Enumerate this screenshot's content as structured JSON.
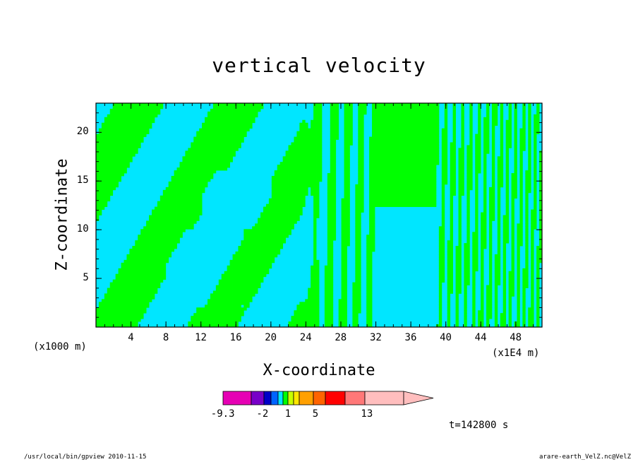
{
  "chart_data": {
    "type": "heatmap",
    "title": "vertical velocity",
    "xlabel": "X-coordinate",
    "ylabel": "Z-coordinate",
    "x_unit_left": "(x1000 m)",
    "x_unit_right": "(x1E4 m)",
    "x_ticks": [
      "4",
      "8",
      "12",
      "16",
      "20",
      "24",
      "28",
      "32",
      "36",
      "40",
      "44",
      "48"
    ],
    "y_ticks": [
      "5",
      "10",
      "15",
      "20"
    ],
    "xlim": [
      0,
      51
    ],
    "ylim": [
      0,
      23
    ],
    "colors": {
      "positive": "#00ff00",
      "negative": "#00e6ff",
      "contour": "#000000"
    },
    "colorbar": {
      "colors": [
        "#e600b4",
        "#7800c8",
        "#0000c8",
        "#0064ff",
        "#00e6ff",
        "#00ff00",
        "#c8ff00",
        "#ffe600",
        "#ffa000",
        "#ff6400",
        "#ff0000",
        "#ff7878",
        "#ffbebe"
      ],
      "tick_labels": [
        "-9.3",
        "-2",
        "1",
        "5",
        "13"
      ]
    },
    "time_label": "t=142800 s",
    "footer_left": "/usr/local/bin/gpview  2010-11-15",
    "footer_right": "arare-earth_VelZ.nc@VelZ"
  }
}
